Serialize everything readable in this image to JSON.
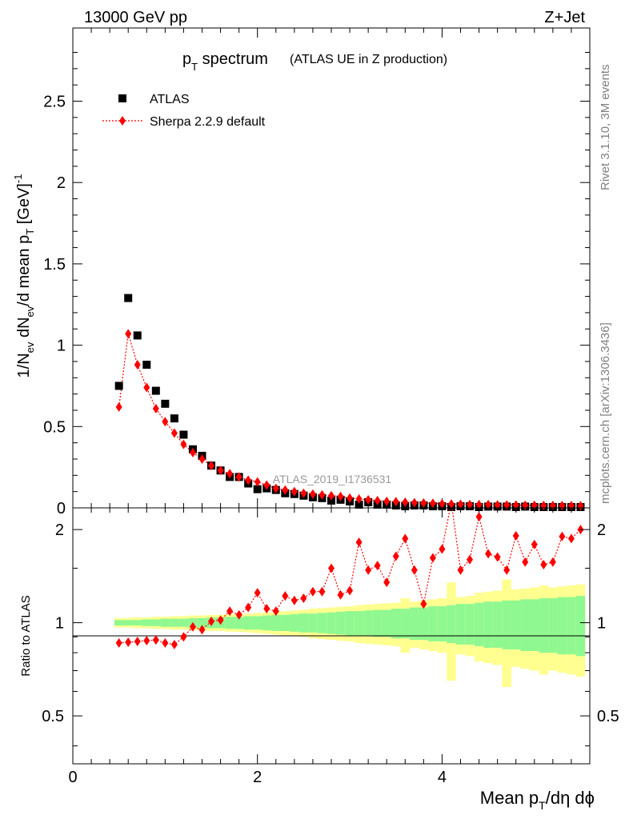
{
  "header": {
    "energy_label": "13000 GeV pp",
    "process_label": "Z+Jet"
  },
  "side_labels": {
    "rivet": "Rivet 3.1.10,  3M events",
    "mcplots": "mcplots.cern.ch [arXiv:1306.3436]"
  },
  "colors": {
    "data": "#000000",
    "mc": "#ff0000",
    "band_stat": "#90f890",
    "band_total": "#ffff90"
  },
  "chart_data": [
    {
      "type": "scatter",
      "title": "p_T spectrum",
      "title_main": "p",
      "title_sub": "T",
      "title_rest": " spectrum",
      "subtitle": "(ATLAS UE in Z production)",
      "ylabel": "1/N_ev dN_ev/d mean p_T [GeV]^-1",
      "xlim": [
        0,
        5.6
      ],
      "ylim": [
        0,
        2.95
      ],
      "yticks": [
        "0",
        "0.5",
        "1",
        "1.5",
        "2",
        "2.5"
      ],
      "watermark": "ATLAS_2019_I1736531",
      "legend": {
        "position": "top-left",
        "data_label": "ATLAS",
        "mc_label": "Sherpa 2.2.9 default"
      },
      "x": [
        0.5,
        0.6,
        0.7,
        0.8,
        0.9,
        1.0,
        1.1,
        1.2,
        1.3,
        1.4,
        1.5,
        1.6,
        1.7,
        1.8,
        1.9,
        2.0,
        2.1,
        2.2,
        2.3,
        2.4,
        2.5,
        2.6,
        2.7,
        2.8,
        2.9,
        3.0,
        3.1,
        3.2,
        3.3,
        3.4,
        3.5,
        3.6,
        3.7,
        3.8,
        3.9,
        4.0,
        4.1,
        4.2,
        4.3,
        4.4,
        4.5,
        4.6,
        4.7,
        4.8,
        4.9,
        5.0,
        5.1,
        5.2,
        5.3,
        5.4,
        5.5
      ],
      "series": [
        {
          "name": "ATLAS",
          "values": [
            0.75,
            1.29,
            1.06,
            0.88,
            0.72,
            0.64,
            0.55,
            0.45,
            0.36,
            0.32,
            0.26,
            0.23,
            0.19,
            0.19,
            0.15,
            0.115,
            0.12,
            0.11,
            0.09,
            0.085,
            0.075,
            0.065,
            0.06,
            0.045,
            0.05,
            0.04,
            0.02,
            0.035,
            0.02,
            0.02,
            0.015,
            0.01,
            0.015,
            0.015,
            0.01,
            0.01,
            0.005,
            0.01,
            0.01,
            0.005,
            0.008,
            0.008,
            0.008,
            0.005,
            0.008,
            0.005,
            0.005,
            0.005,
            0.005,
            0.005,
            0.005
          ]
        },
        {
          "name": "Sherpa 2.2.9 default",
          "values": [
            0.62,
            1.07,
            0.88,
            0.74,
            0.61,
            0.53,
            0.46,
            0.39,
            0.34,
            0.3,
            0.26,
            0.23,
            0.21,
            0.19,
            0.17,
            0.16,
            0.14,
            0.12,
            0.11,
            0.1,
            0.09,
            0.085,
            0.08,
            0.075,
            0.07,
            0.06,
            0.055,
            0.05,
            0.045,
            0.04,
            0.038,
            0.035,
            0.032,
            0.03,
            0.028,
            0.025,
            0.024,
            0.022,
            0.02,
            0.02,
            0.02,
            0.018,
            0.018,
            0.017,
            0.016,
            0.016,
            0.015,
            0.015,
            0.014,
            0.014,
            0.013
          ]
        }
      ]
    },
    {
      "type": "line",
      "ylabel": "Ratio to ATLAS",
      "xlabel": "Mean p_T/dη dϕ",
      "xlabel_main": "Mean p",
      "xlabel_sub": "T",
      "xlabel_rest": "/dη dϕ",
      "xlim": [
        0,
        5.6
      ],
      "ylim": [
        0.35,
        2.35
      ],
      "xticks": [
        "0",
        "2",
        "4"
      ],
      "yticks": [
        "0.5",
        "1",
        "2"
      ],
      "x": [
        0.5,
        0.6,
        0.7,
        0.8,
        0.9,
        1.0,
        1.1,
        1.2,
        1.3,
        1.4,
        1.5,
        1.6,
        1.7,
        1.8,
        1.9,
        2.0,
        2.1,
        2.2,
        2.3,
        2.4,
        2.5,
        2.6,
        2.7,
        2.8,
        2.9,
        3.0,
        3.1,
        3.2,
        3.3,
        3.4,
        3.5,
        3.6,
        3.7,
        3.8,
        3.9,
        4.0,
        4.1,
        4.2,
        4.3,
        4.4,
        4.5,
        4.6,
        4.7,
        4.8,
        4.9,
        5.0,
        5.1,
        5.2,
        5.3,
        5.4,
        5.5
      ],
      "series": [
        {
          "name": "Sherpa 2.2.9 default",
          "values": [
            0.86,
            0.865,
            0.87,
            0.875,
            0.88,
            0.86,
            0.85,
            0.9,
            0.97,
            0.95,
            1.01,
            1.02,
            1.09,
            1.06,
            1.12,
            1.25,
            1.11,
            1.09,
            1.22,
            1.18,
            1.2,
            1.26,
            1.26,
            1.5,
            1.23,
            1.27,
            1.82,
            1.48,
            1.53,
            1.35,
            1.64,
            1.87,
            1.48,
            1.15,
            1.62,
            1.73,
            2.45,
            1.48,
            1.6,
            2.2,
            1.67,
            1.63,
            1.48,
            1.91,
            1.57,
            1.79,
            1.54,
            1.57,
            1.9,
            1.87,
            2.0
          ]
        }
      ],
      "band_total_halfwidth": [
        0.035,
        0.035,
        0.04,
        0.04,
        0.045,
        0.045,
        0.05,
        0.05,
        0.055,
        0.055,
        0.06,
        0.06,
        0.065,
        0.065,
        0.07,
        0.075,
        0.08,
        0.085,
        0.09,
        0.095,
        0.1,
        0.11,
        0.115,
        0.12,
        0.125,
        0.13,
        0.14,
        0.145,
        0.15,
        0.155,
        0.16,
        0.2,
        0.17,
        0.18,
        0.19,
        0.2,
        0.35,
        0.21,
        0.22,
        0.25,
        0.26,
        0.27,
        0.38,
        0.28,
        0.29,
        0.3,
        0.32,
        0.3,
        0.31,
        0.32,
        0.33
      ],
      "band_stat_halfwidth": [
        0.02,
        0.02,
        0.02,
        0.025,
        0.025,
        0.03,
        0.03,
        0.03,
        0.035,
        0.035,
        0.04,
        0.04,
        0.045,
        0.045,
        0.05,
        0.05,
        0.055,
        0.06,
        0.06,
        0.065,
        0.07,
        0.07,
        0.075,
        0.08,
        0.085,
        0.09,
        0.09,
        0.095,
        0.1,
        0.1,
        0.11,
        0.11,
        0.12,
        0.12,
        0.13,
        0.13,
        0.14,
        0.15,
        0.15,
        0.16,
        0.17,
        0.17,
        0.18,
        0.18,
        0.19,
        0.19,
        0.2,
        0.2,
        0.21,
        0.21,
        0.22
      ]
    }
  ]
}
